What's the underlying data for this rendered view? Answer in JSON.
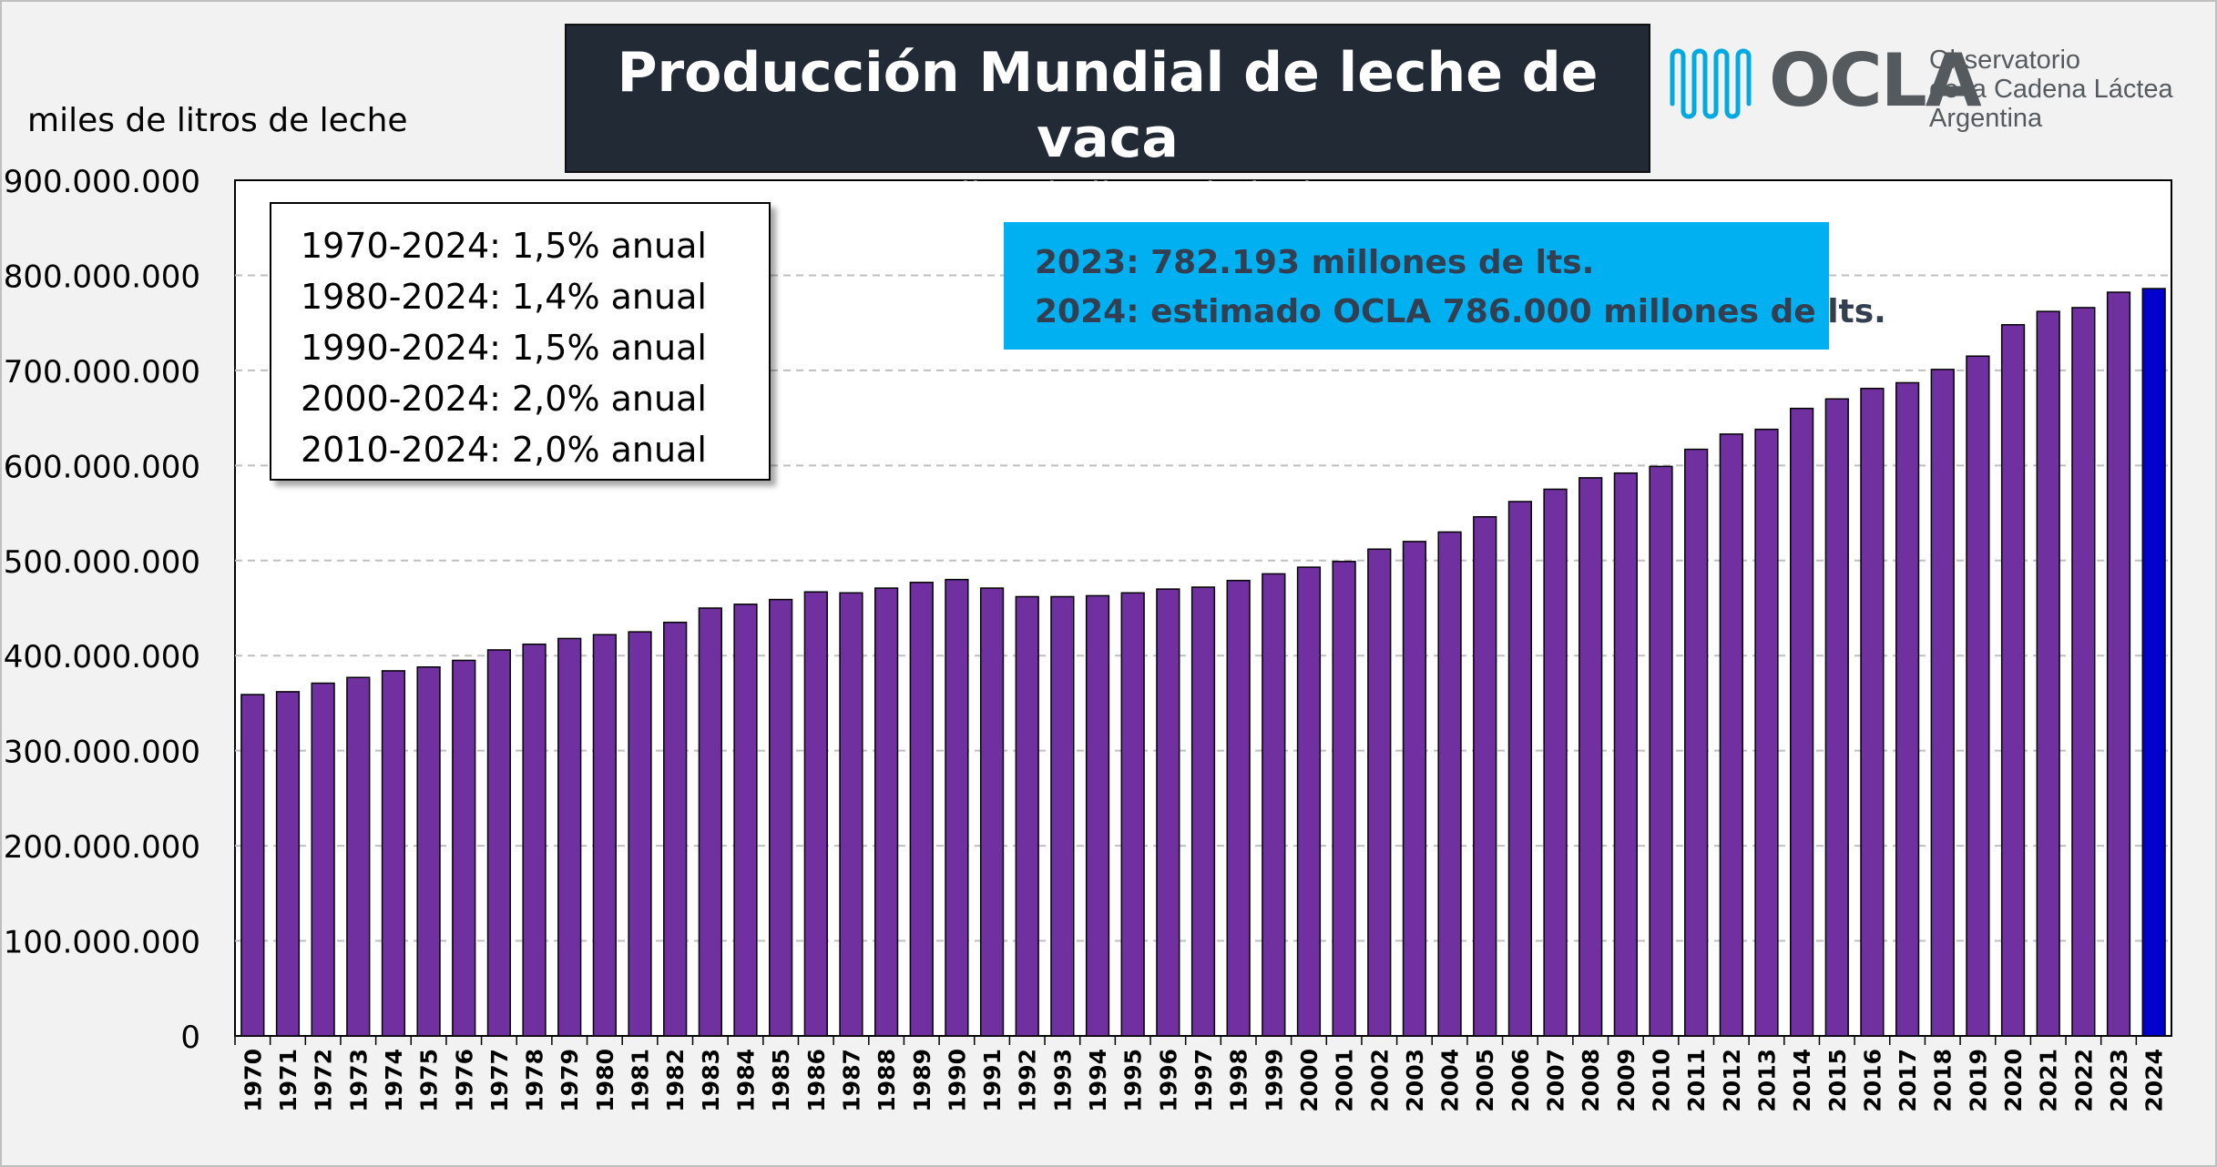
{
  "title": "Producción Mundial de leche de vaca",
  "subtitle": "- en miles de litros de leche -",
  "logo": {
    "name": "OCLA",
    "line1": "Observatorio",
    "line2": "de la Cadena Láctea",
    "line3": "Argentina"
  },
  "growth_rates": [
    "1970-2024: 1,5% anual",
    "1980-2024: 1,4% anual",
    "1990-2024: 1,5% anual",
    "2000-2024: 2,0% anual",
    "2010-2024: 2,0% anual"
  ],
  "note": {
    "line1": "2023: 782.193 millones de lts.",
    "line2": "2024: estimado OCLA 786.000 millones de lts."
  },
  "colors": {
    "bar": "#7030a0",
    "bar_highlight": "#0000cc",
    "title_bg": "#222a35",
    "note_bg": "#00b0f0",
    "logo_wave": "#00a9e0"
  },
  "chart_data": {
    "type": "bar",
    "title": "Producción Mundial de leche de vaca",
    "subtitle": "- en miles de litros de leche -",
    "ylabel": "miles de litros de leche",
    "xlabel": "",
    "ylim": [
      0,
      900000000
    ],
    "yticks": [
      0,
      100000000,
      200000000,
      300000000,
      400000000,
      500000000,
      600000000,
      700000000,
      800000000,
      900000000
    ],
    "ytick_labels": [
      "0",
      "100.000.000",
      "200.000.000",
      "300.000.000",
      "400.000.000",
      "500.000.000",
      "600.000.000",
      "700.000.000",
      "800.000.000",
      "900.000.000"
    ],
    "grid": true,
    "categories": [
      "1970",
      "1971",
      "1972",
      "1973",
      "1974",
      "1975",
      "1976",
      "1977",
      "1978",
      "1979",
      "1980",
      "1981",
      "1982",
      "1983",
      "1984",
      "1985",
      "1986",
      "1987",
      "1988",
      "1989",
      "1990",
      "1991",
      "1992",
      "1993",
      "1994",
      "1995",
      "1996",
      "1997",
      "1998",
      "1999",
      "2000",
      "2001",
      "2002",
      "2003",
      "2004",
      "2005",
      "2006",
      "2007",
      "2008",
      "2009",
      "2010",
      "2011",
      "2012",
      "2013",
      "2014",
      "2015",
      "2016",
      "2017",
      "2018",
      "2019",
      "2020",
      "2021",
      "2022",
      "2023",
      "2024"
    ],
    "values": [
      359000000,
      362000000,
      371000000,
      377000000,
      384000000,
      388000000,
      395000000,
      406000000,
      412000000,
      418000000,
      422000000,
      425000000,
      435000000,
      450000000,
      454000000,
      459000000,
      467000000,
      466000000,
      471000000,
      477000000,
      480000000,
      471000000,
      462000000,
      462000000,
      463000000,
      466000000,
      470000000,
      472000000,
      479000000,
      486000000,
      493000000,
      499000000,
      512000000,
      520000000,
      530000000,
      546000000,
      562000000,
      575000000,
      587000000,
      592000000,
      599000000,
      617000000,
      633000000,
      638000000,
      660000000,
      670000000,
      681000000,
      687000000,
      701000000,
      715000000,
      748000000,
      762000000,
      766000000,
      782193000,
      786000000
    ],
    "highlight_category": "2024"
  }
}
